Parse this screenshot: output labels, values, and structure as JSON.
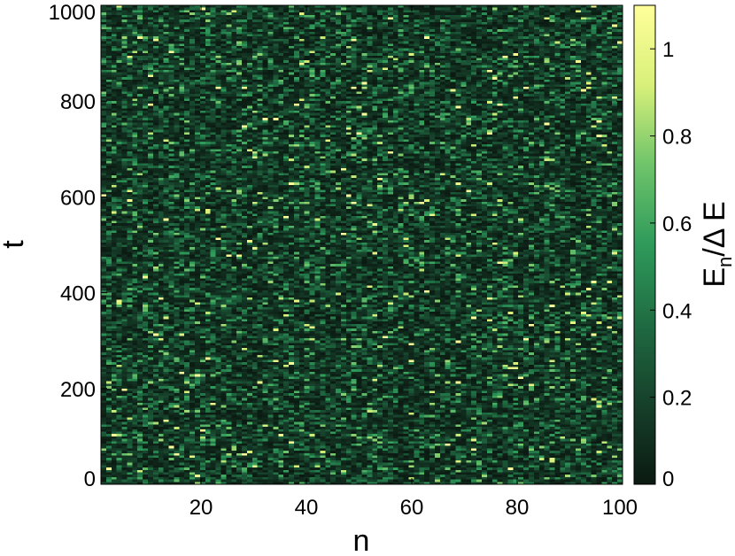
{
  "chart_data": {
    "type": "heatmap",
    "title": "",
    "xlabel": "n",
    "ylabel": "t",
    "colorbar_label": {
      "main": "E",
      "subscript": "n",
      "rest": "/Δ E"
    },
    "xlim": [
      1,
      100
    ],
    "ylim": [
      0,
      1000
    ],
    "x_ticks": [
      20,
      40,
      60,
      80,
      100
    ],
    "y_ticks": [
      0,
      200,
      400,
      600,
      800,
      1000
    ],
    "colorbar_range": [
      0,
      1.1
    ],
    "colorbar_ticks": [
      0,
      0.2,
      0.4,
      0.6,
      0.8,
      1
    ],
    "colormap": [
      "#0b1a12",
      "#16402a",
      "#1f6b42",
      "#2e9a5a",
      "#6ec46a",
      "#d8f07a",
      "#ffff99"
    ],
    "grid": false,
    "sites": 100,
    "time_samples": 200,
    "value_mean": 0.2
  }
}
